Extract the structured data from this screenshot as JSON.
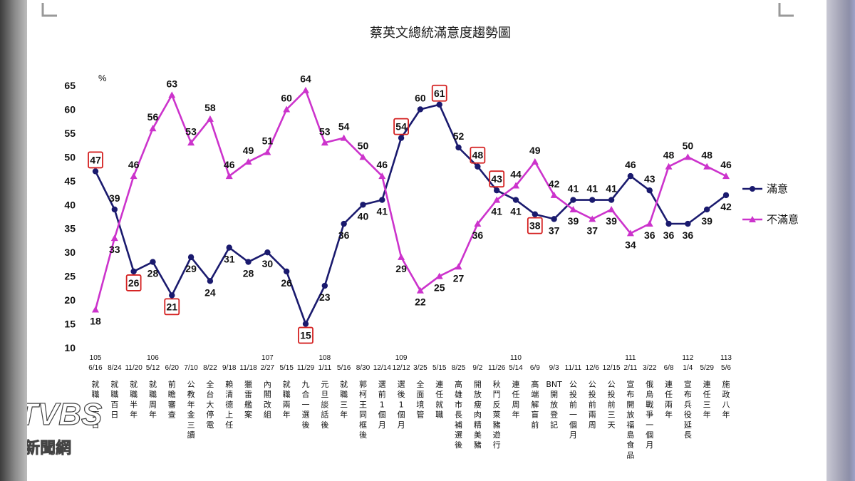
{
  "chart_data": {
    "type": "line",
    "title": "蔡英文總統滿意度趨勢圖",
    "ylabel": "%",
    "xlabel": "",
    "ylim": [
      10,
      65
    ],
    "yticks": [
      10,
      15,
      20,
      25,
      30,
      35,
      40,
      45,
      50,
      55,
      60,
      65
    ],
    "grid": false,
    "legend_position": "right",
    "categories": [
      "6/16",
      "8/24",
      "11/20",
      "5/12",
      "6/20",
      "7/10",
      "8/22",
      "9/18",
      "11/18",
      "2/27",
      "5/15",
      "11/29",
      "1/11",
      "5/16",
      "8/30",
      "12/14",
      "12/12",
      "3/25",
      "5/15",
      "8/25",
      "9/2",
      "11/26",
      "5/14",
      "6/9",
      "9/3",
      "11/11",
      "12/6",
      "12/15",
      "2/11",
      "3/22",
      "6/8",
      "1/4",
      "5/29",
      "5/6"
    ],
    "years": [
      "105",
      "",
      "",
      "106",
      "",
      "",
      "",
      "",
      "",
      "107",
      "",
      "",
      "108",
      "",
      "",
      "",
      "109",
      "",
      "",
      "",
      "",
      "",
      "110",
      "",
      "",
      "",
      "",
      "",
      "111",
      "",
      "",
      "112",
      "",
      "113"
    ],
    "events": [
      "就職一百日",
      "就職百日",
      "就職半年",
      "就職周年",
      "前瞻審查",
      "公教年金三讀",
      "全台大停電",
      "賴清德上任",
      "獵雷艦案",
      "內閣改組",
      "就職兩年",
      "九合一選後",
      "元旦談話後",
      "就職三年",
      "郭柯王同框後",
      "選前1個月",
      "選後1個月",
      "全面境管",
      "連任就職",
      "高雄市長補選後",
      "開放瘦肉精美豬",
      "秋鬥反萊豬遊行",
      "連任周年",
      "高端解盲前",
      "BNT開放登記",
      "公投前一個月",
      "公投前兩周",
      "公投前三天",
      "宣布開放福島食品",
      "俄烏戰爭一個月",
      "連任兩年",
      "宣布兵役延長",
      "連任三年",
      "施政八年"
    ],
    "series": [
      {
        "name": "滿意",
        "color": "#1a1a6e",
        "marker": "circle",
        "values": [
          47,
          39,
          26,
          28,
          21,
          29,
          24,
          31,
          28,
          30,
          26,
          15,
          23,
          36,
          40,
          41,
          54,
          60,
          61,
          52,
          48,
          43,
          41,
          38,
          37,
          41,
          41,
          41,
          46,
          43,
          36,
          36,
          39,
          42
        ]
      },
      {
        "name": "不滿意",
        "color": "#cc33cc",
        "marker": "triangle",
        "values": [
          18,
          33,
          46,
          56,
          63,
          53,
          58,
          46,
          49,
          51,
          60,
          64,
          53,
          54,
          50,
          46,
          29,
          22,
          25,
          27,
          36,
          41,
          44,
          49,
          42,
          39,
          37,
          39,
          34,
          36,
          48,
          50,
          48,
          46
        ]
      }
    ],
    "highlighted": [
      {
        "series": "滿意",
        "category_index": 0
      },
      {
        "series": "滿意",
        "category_index": 2
      },
      {
        "series": "滿意",
        "category_index": 4
      },
      {
        "series": "滿意",
        "category_index": 11
      },
      {
        "series": "滿意",
        "category_index": 16
      },
      {
        "series": "滿意",
        "category_index": 18
      },
      {
        "series": "滿意",
        "category_index": 20
      },
      {
        "series": "滿意",
        "category_index": 21
      },
      {
        "series": "滿意",
        "category_index": 23
      }
    ]
  },
  "watermark": {
    "brand": "TVBS",
    "subtitle": "新聞網"
  }
}
